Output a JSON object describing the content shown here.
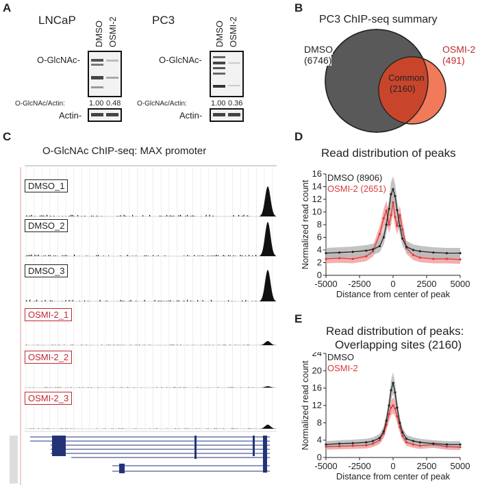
{
  "panelA": {
    "letter": "A",
    "lncap": {
      "title": "LNCaP",
      "lanes": [
        "DMSO",
        "OSMI-2"
      ],
      "row_label": "O-GlcNAc-",
      "ratio_label": "O-GlcNAc/Actin:",
      "ratios": [
        "1.00",
        "0.48"
      ],
      "actin_label": "Actin-"
    },
    "pc3": {
      "title": "PC3",
      "lanes": [
        "DMSO",
        "OSMI-2"
      ],
      "row_label": "O-GlcNAc-",
      "ratio_label": "O-GlcNAc/Actin:",
      "ratios": [
        "1.00",
        "0.36"
      ],
      "actin_label": "Actin-"
    }
  },
  "panelB": {
    "letter": "B",
    "title": "PC3 ChIP-seq summary",
    "dmso_label": "DMSO",
    "dmso_count": "(6746)",
    "osmi_label": "OSMI-2",
    "osmi_count": "(491)",
    "common_label": "Common",
    "common_count": "(2160)",
    "colors": {
      "dmso": "#595959",
      "osmi": "#f07a5a",
      "common": "#c8452c",
      "red_text": "#c0272d"
    }
  },
  "panelC": {
    "letter": "C",
    "title": "O-GlcNAc ChIP-seq: MAX promoter",
    "tracks": [
      "DMSO_1",
      "DMSO_2",
      "DMSO_3",
      "OSMI-2_1",
      "OSMI-2_2",
      "OSMI-2_3"
    ]
  },
  "panelD": {
    "letter": "D",
    "title": "Read distribution of peaks",
    "legend_dmso": "DMSO (8906)",
    "legend_osmi": "OSMI-2 (2651)",
    "xlabel": "Distance from center of peak",
    "ylabel": "Normalized read count",
    "xticks": [
      "-5000",
      "-2500",
      "0",
      "2500",
      "5000"
    ],
    "yticks": [
      "0",
      "2",
      "4",
      "6",
      "8",
      "10",
      "12",
      "14",
      "16"
    ]
  },
  "panelE": {
    "letter": "E",
    "title_line1": "Read distribution of peaks:",
    "title_line2": "Overlapping sites (2160)",
    "legend_dmso": "DMSO",
    "legend_osmi": "OSMI-2",
    "xlabel": "Distance from center of peak",
    "ylabel": "Normalized read count",
    "xticks": [
      "-5000",
      "-2500",
      "0",
      "2500",
      "5000"
    ],
    "yticks": [
      "0",
      "4",
      "8",
      "12",
      "16",
      "20",
      "24"
    ]
  },
  "chart_data": [
    {
      "type": "line",
      "title": "Read distribution of peaks",
      "xlabel": "Distance from center of peak",
      "ylabel": "Normalized read count",
      "xlim": [
        -5000,
        5000
      ],
      "ylim": [
        0,
        16
      ],
      "x": [
        -5000,
        -4000,
        -3000,
        -2000,
        -1500,
        -1000,
        -700,
        -500,
        -300,
        -150,
        0,
        150,
        300,
        500,
        700,
        1000,
        1500,
        2000,
        3000,
        4000,
        5000
      ],
      "series": [
        {
          "name": "DMSO (8906)",
          "color": "#222222",
          "values": [
            3.5,
            3.6,
            3.7,
            3.9,
            4.1,
            4.6,
            6.0,
            8.0,
            10.5,
            12.8,
            13.6,
            12.5,
            10.3,
            7.8,
            5.8,
            4.5,
            4.0,
            3.8,
            3.6,
            3.5,
            3.5
          ]
        },
        {
          "name": "OSMI-2 (2651)",
          "color": "#d63a3a",
          "values": [
            2.6,
            2.7,
            2.6,
            3.0,
            3.8,
            6.5,
            9.0,
            10.2,
            8.0,
            9.5,
            11.5,
            9.2,
            7.8,
            9.5,
            7.2,
            4.3,
            3.2,
            2.8,
            2.6,
            2.6,
            2.5
          ]
        }
      ]
    },
    {
      "type": "line",
      "title": "Read distribution of peaks: Overlapping sites (2160)",
      "xlabel": "Distance from center of peak",
      "ylabel": "Normalized read count",
      "xlim": [
        -5000,
        5000
      ],
      "ylim": [
        0,
        24
      ],
      "x": [
        -5000,
        -4000,
        -3000,
        -2000,
        -1500,
        -1000,
        -700,
        -500,
        -300,
        -150,
        0,
        150,
        300,
        500,
        700,
        1000,
        1500,
        2000,
        3000,
        4000,
        5000
      ],
      "series": [
        {
          "name": "DMSO",
          "color": "#222222",
          "values": [
            3.0,
            3.2,
            3.3,
            3.5,
            3.8,
            4.5,
            6.0,
            8.5,
            12.0,
            15.5,
            17.2,
            15.0,
            11.5,
            8.0,
            5.8,
            4.3,
            3.8,
            3.5,
            3.2,
            3.0,
            3.0
          ]
        },
        {
          "name": "OSMI-2",
          "color": "#d63a3a",
          "values": [
            2.5,
            2.6,
            2.7,
            2.8,
            3.2,
            4.0,
            5.5,
            7.5,
            10.0,
            11.5,
            12.0,
            11.3,
            9.5,
            7.0,
            5.0,
            3.5,
            3.0,
            2.7,
            3.0,
            2.5,
            2.4
          ]
        }
      ]
    }
  ]
}
